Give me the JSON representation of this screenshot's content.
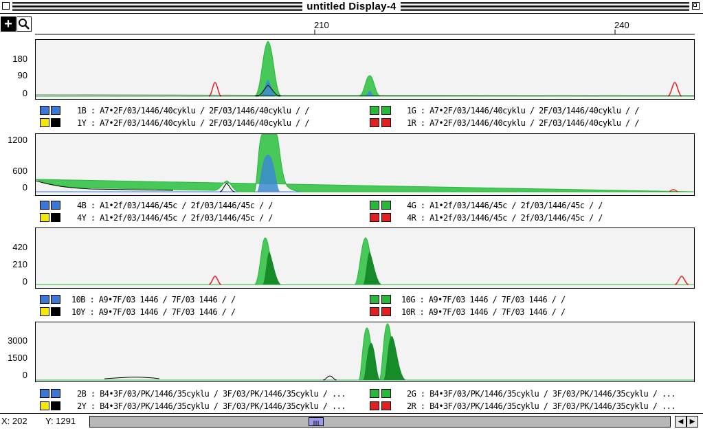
{
  "window": {
    "title": "untitled Display-4"
  },
  "toolbar": {
    "tools": [
      {
        "name": "crosshair-tool",
        "glyph": "+"
      },
      {
        "name": "zoom-tool",
        "glyph": "magnifier"
      }
    ],
    "ruler_labels": [
      "210",
      "240"
    ]
  },
  "colors": {
    "blue": "#3a78d8",
    "green": "#27b83a",
    "yellow": "#f2e800",
    "black": "#000000",
    "red": "#e02020",
    "plot_bg": "#f3f3f3"
  },
  "panels": [
    {
      "yticks": [
        "180",
        "90",
        "0"
      ],
      "legend": [
        {
          "color": "blue",
          "text": "1B : A7•2F/03/1446/40cyklu / 2F/03/1446/40cyklu / /"
        },
        {
          "color": "yellow",
          "text": "1Y : A7•2F/03/1446/40cyklu / 2F/03/1446/40cyklu / /"
        },
        {
          "color": "green",
          "text": "1G : A7•2F/03/1446/40cyklu / 2F/03/1446/40cyklu / /"
        },
        {
          "color": "red",
          "text": "1R : A7•2F/03/1446/40cyklu / 2F/03/1446/40cyklu / /"
        }
      ]
    },
    {
      "yticks": [
        "1200",
        "600",
        "0"
      ],
      "legend": [
        {
          "color": "blue",
          "text": "4B : A1•2f/03/1446/45c / 2f/03/1446/45c / /"
        },
        {
          "color": "yellow",
          "text": "4Y : A1•2f/03/1446/45c / 2f/03/1446/45c / /"
        },
        {
          "color": "green",
          "text": "4G : A1•2f/03/1446/45c / 2f/03/1446/45c / /"
        },
        {
          "color": "red",
          "text": "4R : A1•2f/03/1446/45c / 2f/03/1446/45c / /"
        }
      ]
    },
    {
      "yticks": [
        "420",
        "210",
        "0"
      ],
      "legend": [
        {
          "color": "blue",
          "text": "10B : A9•7F/03 1446 / 7F/03 1446 / /"
        },
        {
          "color": "yellow",
          "text": "10Y : A9•7F/03 1446 / 7F/03 1446 / /"
        },
        {
          "color": "green",
          "text": "10G : A9•7F/03 1446 / 7F/03 1446 / /"
        },
        {
          "color": "red",
          "text": "10R : A9•7F/03 1446 / 7F/03 1446 / /"
        }
      ]
    },
    {
      "yticks": [
        "3000",
        "1500",
        "0"
      ],
      "legend": [
        {
          "color": "blue",
          "text": "2B : B4•3F/03/PK/1446/35cyklu / 3F/03/PK/1446/35cyklu / ..."
        },
        {
          "color": "yellow",
          "text": "2Y : B4•3F/03/PK/1446/35cyklu / 3F/03/PK/1446/35cyklu / ..."
        },
        {
          "color": "green",
          "text": "2G : B4•3F/03/PK/1446/35cyklu / 3F/03/PK/1446/35cyklu / ..."
        },
        {
          "color": "red",
          "text": "2R : B4•3F/03/PK/1446/35cyklu / 3F/03/PK/1446/35cyklu / ..."
        }
      ]
    }
  ],
  "status": {
    "x_label": "X: 202",
    "y_label": "Y: 1291"
  }
}
